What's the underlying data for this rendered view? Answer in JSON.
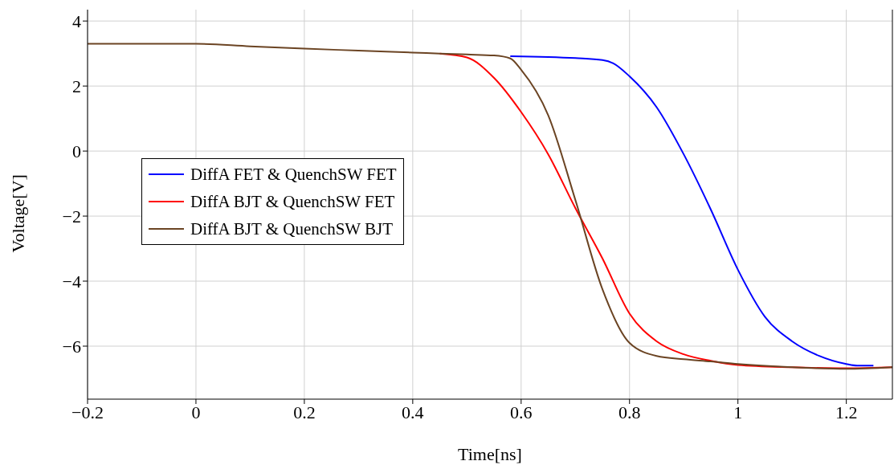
{
  "chart_data": {
    "type": "line",
    "xlabel": "Time[ns]",
    "ylabel": "Voltage[V]",
    "xlim": [
      -0.2,
      1.285
    ],
    "xticks": [
      -0.2,
      0,
      0.2,
      0.4,
      0.6,
      0.8,
      1,
      1.2
    ],
    "ylim": [
      -7.63,
      4.35
    ],
    "yticks": [
      -6,
      -4,
      -2,
      0,
      2,
      4
    ],
    "grid": true,
    "legend": "left",
    "marker": "none",
    "line_style": "solid",
    "series": [
      {
        "name": "DiffA FET & QuenchSW FET",
        "color": "#0000ff",
        "x": [
          0.58,
          0.7,
          0.75,
          0.77,
          0.8,
          0.85,
          0.9,
          0.95,
          1.0,
          1.05,
          1.1,
          1.15,
          1.2,
          1.22,
          1.25
        ],
        "values": [
          2.92,
          2.86,
          2.8,
          2.7,
          2.3,
          1.35,
          -0.1,
          -1.8,
          -3.65,
          -5.1,
          -5.85,
          -6.3,
          -6.55,
          -6.6,
          -6.6
        ]
      },
      {
        "name": "DiffA BJT & QuenchSW FET",
        "color": "#ff0000",
        "x": [
          0.45,
          0.5,
          0.55,
          0.6,
          0.65,
          0.7,
          0.75,
          0.8,
          0.85,
          0.9,
          0.95,
          1.0,
          1.1,
          1.2,
          1.285
        ],
        "values": [
          3.0,
          2.88,
          2.25,
          1.2,
          -0.1,
          -1.75,
          -3.3,
          -5.0,
          -5.85,
          -6.25,
          -6.45,
          -6.58,
          -6.65,
          -6.68,
          -6.65
        ]
      },
      {
        "name": "DiffA BJT & QuenchSW BJT",
        "color": "#6b4423",
        "x": [
          -0.2,
          0,
          0.1,
          0.2,
          0.3,
          0.4,
          0.45,
          0.5,
          0.55,
          0.58,
          0.6,
          0.65,
          0.7,
          0.75,
          0.8,
          0.85,
          0.9,
          0.95,
          1.0,
          1.1,
          1.2,
          1.285
        ],
        "values": [
          3.3,
          3.3,
          3.22,
          3.15,
          3.09,
          3.03,
          3.0,
          2.97,
          2.94,
          2.85,
          2.5,
          1.1,
          -1.5,
          -4.25,
          -5.9,
          -6.3,
          -6.4,
          -6.47,
          -6.55,
          -6.65,
          -6.7,
          -6.65
        ]
      }
    ]
  }
}
